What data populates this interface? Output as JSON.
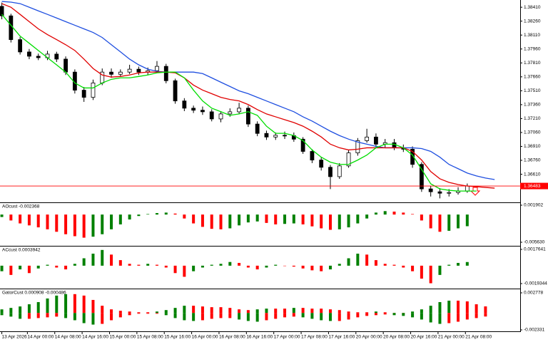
{
  "chart_data": [
    {
      "type": "candlestick",
      "xlim": [
        -0.2,
        56.8
      ],
      "xticks": [
        {
          "value": 0,
          "label": "13 Apr 2026"
        },
        {
          "value": 2.8,
          "label": "14 Apr 00:00"
        },
        {
          "value": 5.8,
          "label": "14 Apr 08:00"
        },
        {
          "value": 8.8,
          "label": "14 Apr 16:00"
        },
        {
          "value": 11.8,
          "label": "15 Apr 00:00"
        },
        {
          "value": 14.8,
          "label": "15 Apr 08:00"
        },
        {
          "value": 17.8,
          "label": "15 Apr 16:00"
        },
        {
          "value": 20.8,
          "label": "16 Apr 00:00"
        },
        {
          "value": 23.8,
          "label": "16 Apr 08:00"
        },
        {
          "value": 26.8,
          "label": "16 Apr 16:00"
        },
        {
          "value": 29.8,
          "label": "17 Apr 00:00"
        },
        {
          "value": 32.8,
          "label": "17 Apr 08:00"
        },
        {
          "value": 35.8,
          "label": "17 Apr 16:00"
        },
        {
          "value": 38.8,
          "label": "20 Apr 00:00"
        },
        {
          "value": 41.8,
          "label": "20 Apr 08:00"
        },
        {
          "value": 44.8,
          "label": "20 Apr 16:00"
        },
        {
          "value": 47.8,
          "label": "21 Apr 00:00"
        },
        {
          "value": 50.8,
          "label": "21 Apr 08:00"
        }
      ],
      "ylim": [
        1.36307,
        1.38488
      ],
      "yticks": [
        {
          "value": 1.3841,
          "label": "1.38410"
        },
        {
          "value": 1.3826,
          "label": "1.38260"
        },
        {
          "value": 1.3811,
          "label": "1.38110"
        },
        {
          "value": 1.3796,
          "label": "1.37960"
        },
        {
          "value": 1.3781,
          "label": "1.37810"
        },
        {
          "value": 1.3766,
          "label": "1.37660"
        },
        {
          "value": 1.3751,
          "label": "1.37510"
        },
        {
          "value": 1.3736,
          "label": "1.37360"
        },
        {
          "value": 1.3721,
          "label": "1.37210"
        },
        {
          "value": 1.3706,
          "label": "1.37060"
        },
        {
          "value": 1.3691,
          "label": "1.36910"
        },
        {
          "value": 1.3676,
          "label": "1.36760"
        },
        {
          "value": 1.3661,
          "label": "1.36610"
        }
      ],
      "up_color": "#ffffff",
      "down_color": "#000000",
      "open": [
        1.3842,
        1.38317,
        1.38061,
        1.37928,
        1.37882,
        1.37866,
        1.37905,
        1.37851,
        1.37711,
        1.37516,
        1.37439,
        1.37594,
        1.37711,
        1.37687,
        1.37711,
        1.37742,
        1.37711,
        1.37726,
        1.37773,
        1.37618,
        1.374,
        1.37322,
        1.373,
        1.37283,
        1.37206,
        1.3726,
        1.37283,
        1.37322,
        1.37151,
        1.3705,
        1.37011,
        1.3703,
        1.37027,
        1.36988,
        1.36856,
        1.36763,
        1.36685,
        1.36584,
        1.367,
        1.3684,
        1.36972,
        1.37011,
        1.36934,
        1.3695,
        1.36895,
        1.3688,
        1.36716,
        1.36452,
        1.36421,
        1.36405,
        1.36413,
        1.36428,
        null,
        null,
        null
      ],
      "high": [
        1.3846,
        1.3834,
        1.3809,
        1.3796,
        1.3791,
        1.3794,
        1.3793,
        1.3788,
        1.3774,
        1.3755,
        1.3763,
        1.3775,
        1.3775,
        1.3774,
        1.3779,
        1.3777,
        1.3776,
        1.3783,
        1.378,
        1.3764,
        1.3743,
        1.3735,
        1.3734,
        1.3731,
        1.3729,
        1.3732,
        1.3738,
        1.3735,
        1.3718,
        1.3708,
        1.3706,
        1.3707,
        1.3706,
        1.3701,
        1.3688,
        1.3679,
        1.3671,
        1.3673,
        1.3687,
        1.37,
        1.371,
        1.3705,
        1.3699,
        1.3699,
        1.3693,
        1.3691,
        1.3674,
        1.3648,
        1.3646,
        1.3645,
        1.3647,
        1.3651,
        null,
        null,
        null
      ],
      "low": [
        1.3828,
        1.3803,
        1.379,
        1.3785,
        1.3784,
        1.3784,
        1.3782,
        1.3768,
        1.3748,
        1.3739,
        1.3741,
        1.3757,
        1.3765,
        1.3766,
        1.3769,
        1.3768,
        1.3768,
        1.377,
        1.3759,
        1.3737,
        1.3729,
        1.3727,
        1.3725,
        1.3718,
        1.3717,
        1.3723,
        1.3726,
        1.3712,
        1.3702,
        1.3698,
        1.3698,
        1.3699,
        1.3696,
        1.3683,
        1.3673,
        1.3665,
        1.3645,
        1.3656,
        1.3668,
        1.3681,
        1.3695,
        1.369,
        1.369,
        1.3687,
        1.3685,
        1.3668,
        1.3642,
        1.3637,
        1.3635,
        1.3637,
        1.3639,
        1.3641,
        null,
        null,
        null
      ],
      "close": [
        1.38317,
        1.38061,
        1.37928,
        1.37882,
        1.37866,
        1.37905,
        1.37851,
        1.37711,
        1.37516,
        1.37439,
        1.37594,
        1.37711,
        1.37687,
        1.37711,
        1.37742,
        1.37711,
        1.37726,
        1.37773,
        1.37618,
        1.374,
        1.37322,
        1.373,
        1.37283,
        1.37206,
        1.3726,
        1.37283,
        1.37322,
        1.37151,
        1.3705,
        1.37011,
        1.3703,
        1.37027,
        1.36988,
        1.36856,
        1.36763,
        1.36685,
        1.36584,
        1.367,
        1.3684,
        1.36972,
        1.37011,
        1.36934,
        1.3695,
        1.36895,
        1.3688,
        1.36716,
        1.36452,
        1.36421,
        1.36405,
        1.36413,
        1.36428,
        1.36483,
        null,
        null,
        null
      ],
      "series": [
        {
          "color": "#1f4fe0",
          "values": [
            1.38472,
            1.38465,
            1.38449,
            1.3841,
            1.38371,
            1.38333,
            1.38294,
            1.38255,
            1.38216,
            1.38177,
            1.38138,
            1.38084,
            1.38006,
            1.37929,
            1.37851,
            1.37789,
            1.37742,
            1.37719,
            1.37711,
            1.37711,
            1.37711,
            1.37711,
            1.37695,
            1.37649,
            1.37602,
            1.37556,
            1.37509,
            1.37478,
            1.37439,
            1.374,
            1.37361,
            1.37322,
            1.37284,
            1.37229,
            1.37183,
            1.37128,
            1.37074,
            1.37027,
            1.36988,
            1.36957,
            1.36934,
            1.36911,
            1.36895,
            1.36895,
            1.36895,
            1.36895,
            1.36887,
            1.36856,
            1.36794,
            1.36716,
            1.3667,
            1.36623,
            1.36592,
            1.36569,
            1.36553
          ]
        },
        {
          "color": "#e00000",
          "values": [
            1.38449,
            1.3841,
            1.38333,
            1.38255,
            1.38177,
            1.38115,
            1.38061,
            1.38006,
            1.37944,
            1.37851,
            1.3775,
            1.3768,
            1.37657,
            1.37664,
            1.3768,
            1.37703,
            1.37711,
            1.37711,
            1.37711,
            1.37703,
            1.37649,
            1.37571,
            1.37517,
            1.37478,
            1.37439,
            1.37416,
            1.374,
            1.37361,
            1.37307,
            1.3726,
            1.37229,
            1.37198,
            1.37167,
            1.37128,
            1.37074,
            1.37012,
            1.36934,
            1.36895,
            1.36872,
            1.3688,
            1.36895,
            1.36895,
            1.36895,
            1.36895,
            1.36895,
            1.36856,
            1.36763,
            1.36639,
            1.36561,
            1.36522,
            1.36499,
            1.36483,
            1.36476,
            1.36468,
            1.3646
          ]
        },
        {
          "color": "#00dd00",
          "values": [
            1.38333,
            1.38216,
            1.38099,
            1.38022,
            1.37944,
            1.37866,
            1.37789,
            1.37711,
            1.37594,
            1.3754,
            1.3754,
            1.37594,
            1.37633,
            1.37649,
            1.37649,
            1.37664,
            1.3768,
            1.37703,
            1.37711,
            1.37711,
            1.37649,
            1.37517,
            1.374,
            1.37322,
            1.37284,
            1.37245,
            1.3726,
            1.37284,
            1.37245,
            1.37128,
            1.37051,
            1.37051,
            1.37027,
            1.36973,
            1.36872,
            1.36794,
            1.3674,
            1.36716,
            1.36716,
            1.36763,
            1.36817,
            1.36895,
            1.36934,
            1.36934,
            1.36895,
            1.36817,
            1.36662,
            1.36507,
            1.36452,
            1.36437,
            1.36429,
            1.36429,
            1.36429,
            null,
            null
          ]
        }
      ],
      "current_price": 1.36483,
      "current_price_color": "#ff0000"
    },
    {
      "type": "bar",
      "title": "AOcust -0.002368",
      "xlim": [
        -0.2,
        56.8
      ],
      "ylim": [
        -0.006354,
        0.002336
      ],
      "yticks": [
        0.001902,
        {
          "value": -0.00563,
          "label": "-0.005630"
        }
      ],
      "up_color": "#008000",
      "down_color": "#ff0000",
      "values": [
        -0.0005,
        -0.0012,
        -0.0018,
        -0.0022,
        -0.0026,
        -0.003,
        -0.0035,
        -0.004,
        -0.0044,
        -0.0047,
        -0.0045,
        -0.004,
        -0.003,
        -0.002,
        -0.001,
        -0.0003,
        0.0001,
        0.0003,
        0.0004,
        0.0002,
        -0.0008,
        -0.0018,
        -0.0025,
        -0.0029,
        -0.003,
        -0.0028,
        -0.0022,
        -0.0016,
        -0.0014,
        -0.0017,
        -0.002,
        -0.0019,
        -0.0018,
        -0.002,
        -0.0024,
        -0.0028,
        -0.0031,
        -0.003,
        -0.0026,
        -0.0018,
        -0.0008,
        0.0004,
        0.0007,
        0.0006,
        0.0004,
        0.0001,
        -0.0012,
        -0.0028,
        -0.0035,
        -0.0033,
        -0.0028,
        -0.002368,
        null,
        null,
        null
      ]
    },
    {
      "type": "bar",
      "title": "ACcust 0.0003942",
      "xlim": [
        -0.2,
        56.8
      ],
      "ylim": [
        -0.002474,
        0.002072
      ],
      "yticks": [
        0.0017641,
        -0.0019344
      ],
      "up_color": "#008000",
      "down_color": "#ff0000",
      "values": [
        -0.0006,
        -0.001,
        -0.0004,
        -0.0008,
        -0.0003,
        0.0001,
        -0.0002,
        -0.0004,
        0.0002,
        0.0008,
        0.0013,
        0.0017,
        0.0012,
        0.0006,
        0.0002,
        0.0001,
        0.0002,
        0.0001,
        -0.0002,
        -0.0008,
        -0.0012,
        -0.0006,
        -0.0002,
        0.0001,
        0.0002,
        0.0004,
        0.0003,
        -0.0002,
        -0.0004,
        -0.0002,
        0.0001,
        0.0,
        -0.0001,
        -0.0003,
        -0.0005,
        -0.0006,
        -0.0004,
        0.0002,
        0.0008,
        0.0013,
        0.0012,
        0.0006,
        0.0002,
        0.0001,
        -0.0002,
        -0.0006,
        -0.0014,
        -0.0019,
        -0.001,
        0.0001,
        0.0003,
        0.0003942,
        null,
        null,
        null
      ]
    },
    {
      "type": "gator",
      "title": "GatorCust 0.000908 -0.000486",
      "xlim": [
        -0.2,
        56.8
      ],
      "ylim": [
        -0.002527,
        0.003269
      ],
      "yticks": [
        0.002778,
        -0.002331
      ],
      "up_color": "#008000",
      "down_color": "#ff0000",
      "series": [
        {
          "values": [
            0.0005,
            0.0007,
            0.0009,
            0.0012,
            0.0015,
            0.002,
            0.0024,
            0.0026,
            0.0026,
            0.0024,
            0.0018,
            0.001,
            0.0005,
            0.0003,
            0.0002,
            0.0001,
            0.0001,
            0.0002,
            0.0004,
            0.0007,
            0.001,
            0.001,
            0.0009,
            0.0008,
            0.0008,
            0.0007,
            0.0005,
            0.0004,
            0.0005,
            0.0006,
            0.0006,
            0.0006,
            0.0007,
            0.0007,
            0.0006,
            0.0006,
            0.0005,
            0.0004,
            0.0002,
            0.0001,
            0.0001,
            0.0002,
            0.0001,
            0.0,
            0.0,
            0.0002,
            0.0005,
            0.001,
            0.0015,
            0.0017,
            0.0017,
            0.0016,
            0.0012,
            0.000908,
            null
          ]
        },
        {
          "values": [
            -0.0003,
            -0.0005,
            -0.0008,
            -0.0008,
            -0.0007,
            -0.0006,
            -0.0005,
            -0.0007,
            -0.001,
            -0.0014,
            -0.0016,
            -0.0015,
            -0.001,
            -0.0006,
            -0.0003,
            -0.0001,
            -0.0001,
            -0.0001,
            -0.0003,
            -0.0007,
            -0.001,
            -0.0011,
            -0.001,
            -0.0008,
            -0.0007,
            -0.0007,
            -0.0009,
            -0.0011,
            -0.0012,
            -0.001,
            -0.0008,
            -0.0006,
            -0.0005,
            -0.0006,
            -0.0008,
            -0.001,
            -0.0011,
            -0.0011,
            -0.0009,
            -0.0006,
            -0.0004,
            -0.0003,
            -0.0002,
            -0.0003,
            -0.0004,
            -0.0006,
            -0.0009,
            -0.0013,
            -0.0015,
            -0.0014,
            -0.0012,
            -0.0009,
            -0.0007,
            -0.000486,
            null
          ]
        }
      ]
    }
  ]
}
